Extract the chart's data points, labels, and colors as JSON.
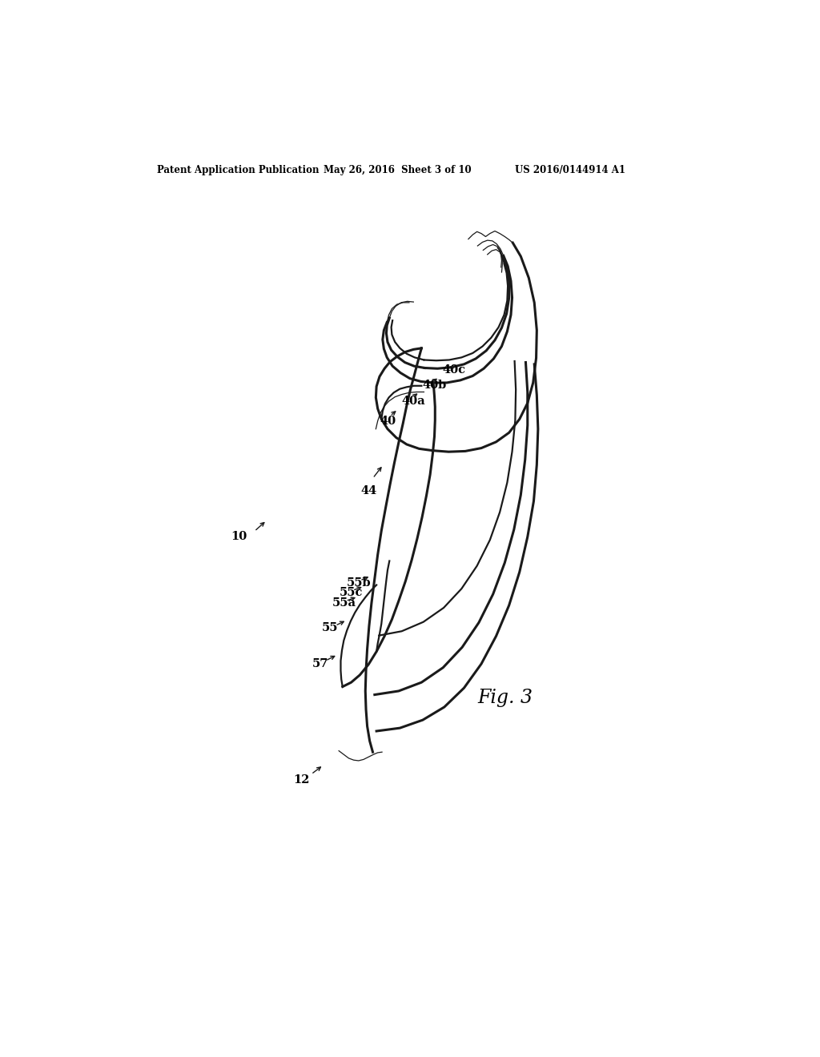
{
  "header_left": "Patent Application Publication",
  "header_mid": "May 26, 2016  Sheet 3 of 10",
  "header_right": "US 2016/0144914 A1",
  "fig_label": "Fig. 3",
  "bg_color": "#ffffff",
  "line_color": "#1a1a1a",
  "text_color": "#000000",
  "lw_thick": 2.2,
  "lw_med": 1.6,
  "lw_thin": 0.9
}
